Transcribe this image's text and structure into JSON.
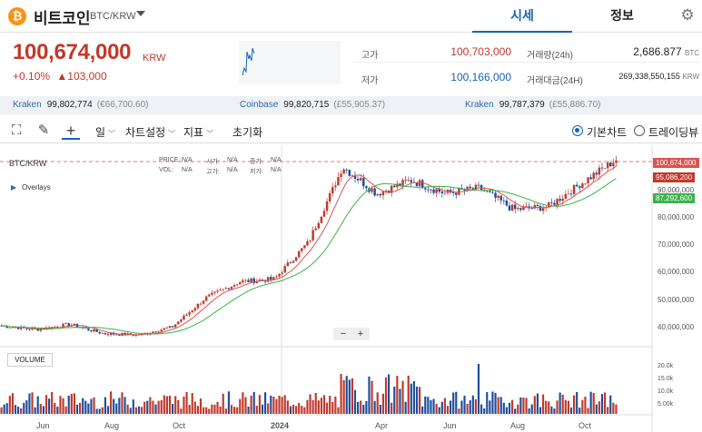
{
  "header": {
    "coin_name": "비트코인",
    "pair": "BTC/KRW",
    "tabs": [
      {
        "label": "시세",
        "active": true
      },
      {
        "label": "정보",
        "active": false
      }
    ],
    "brand_color": "#f7931a"
  },
  "ticker": {
    "price": "100,674,000",
    "unit": "KRW",
    "change_pct": "+0.10%",
    "change_amount": "103,000",
    "high_label": "고가",
    "high": "100,703,000",
    "low_label": "저가",
    "low": "100,166,000",
    "vol_label": "거래량(24h)",
    "vol": "2,686.877",
    "vol_unit": "BTC",
    "amount_label": "거래대금(24H)",
    "amount": "269,338,550,155",
    "amount_unit": "KRW"
  },
  "exchanges": [
    {
      "name": "Kraken",
      "price": "99,802,774",
      "usd": "(€66,700.60)"
    },
    {
      "name": "Coinbase",
      "price": "99,820,715",
      "usd": "(£55,905.37)"
    },
    {
      "name": "Kraken",
      "price": "99,787,379",
      "usd": "(£55,886.70)"
    }
  ],
  "toolbar": {
    "period": "일",
    "chart_settings": "차트설정",
    "indicators": "지표",
    "reset": "초기화",
    "basic_chart": "기본차트",
    "tradingview": "트레이딩뷰"
  },
  "chart_legend": {
    "symbol": "BTC/KRW",
    "price_label": "PRICE:",
    "open_label": "시가:",
    "close_label": "종가:",
    "vol_label": "VOL:",
    "high_label": "고가:",
    "low_label": "저가:",
    "na": "N/A",
    "overlays": "Overlays",
    "volume": "VOLUME",
    "zoom_out": "−",
    "zoom_in": "+"
  },
  "chart_data": {
    "type": "candlestick",
    "currency": "KRW",
    "y_ticks": [
      "100,674,000",
      "95,086,200",
      "90,000,000",
      "87,292,600",
      "80,000,000",
      "70,000,000",
      "60,000,000",
      "50,000,000",
      "40,000,000"
    ],
    "price_tags": [
      {
        "label": "100,674,000",
        "value": 100674000,
        "color": "#d9534f"
      },
      {
        "label": "95,086,200",
        "value": 95086200,
        "color": "#c0392b"
      },
      {
        "label": "87,292,600",
        "value": 87292600,
        "color": "#3cb34a"
      }
    ],
    "volume_ticks": [
      "20.0k",
      "15.0k",
      "10.0k",
      "5.00k"
    ],
    "x_labels": [
      "Jun",
      "Aug",
      "Oct",
      "2024",
      "Apr",
      "Jun",
      "Aug",
      "Oct"
    ],
    "series_close_monthly": [
      {
        "date": "2023-05",
        "close": 38500000
      },
      {
        "date": "2023-06",
        "close": 37000000
      },
      {
        "date": "2023-07",
        "close": 39000000
      },
      {
        "date": "2023-08",
        "close": 35500000
      },
      {
        "date": "2023-09",
        "close": 35000000
      },
      {
        "date": "2023-10",
        "close": 38000000
      },
      {
        "date": "2023-11",
        "close": 49000000
      },
      {
        "date": "2023-12",
        "close": 55000000
      },
      {
        "date": "2024-01",
        "close": 56000000
      },
      {
        "date": "2024-02",
        "close": 70000000
      },
      {
        "date": "2024-03",
        "close": 98000000
      },
      {
        "date": "2024-04",
        "close": 88000000
      },
      {
        "date": "2024-05",
        "close": 93000000
      },
      {
        "date": "2024-06",
        "close": 88000000
      },
      {
        "date": "2024-07",
        "close": 90000000
      },
      {
        "date": "2024-08",
        "close": 82000000
      },
      {
        "date": "2024-09",
        "close": 83000000
      },
      {
        "date": "2024-10",
        "close": 92000000
      },
      {
        "date": "2024-11",
        "close": 100674000
      }
    ],
    "colors": {
      "up": "#c0392b",
      "down": "#1f4e9c",
      "ma_short": "#d9534f",
      "ma_long": "#3cb34a"
    }
  }
}
